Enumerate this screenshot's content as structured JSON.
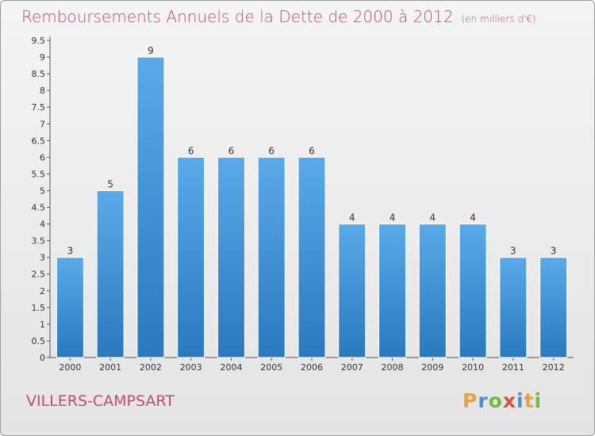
{
  "title": "Remboursements Annuels de la Dette de 2000 à 2012",
  "subtitle": "(en milliers d'€)",
  "commune": "VILLERS-CAMPSART",
  "logo": {
    "letters": [
      "P",
      "r",
      "o",
      "x",
      "i",
      "t",
      "i"
    ],
    "colors": [
      "#e8a33a",
      "#4a8fd6",
      "#6dbb3c",
      "#d9503f",
      "#4a8fd6",
      "#e8a33a",
      "#6dbb3c"
    ]
  },
  "colors": {
    "bar_light": "#5aaaea",
    "bar_dark": "#2a78be",
    "title": "#c24a6e"
  },
  "chart_data": {
    "type": "bar",
    "categories": [
      "2000",
      "2001",
      "2002",
      "2003",
      "2004",
      "2005",
      "2006",
      "2007",
      "2008",
      "2009",
      "2010",
      "2011",
      "2012"
    ],
    "values": [
      3,
      5,
      9,
      6,
      6,
      6,
      6,
      4,
      4,
      4,
      4,
      3,
      3
    ],
    "value_labels": [
      "3",
      "5",
      "9",
      "6",
      "6",
      "6",
      "6",
      "4",
      "4",
      "4",
      "4",
      "3",
      "3"
    ],
    "ylim": [
      0,
      9.5
    ],
    "yticks": [
      0,
      0.5,
      1,
      1.5,
      2,
      2.5,
      3,
      3.5,
      4,
      4.5,
      5,
      5.5,
      6,
      6.5,
      7,
      7.5,
      8,
      8.5,
      9,
      9.5
    ],
    "ytick_labels": [
      "0",
      "0.5",
      "1",
      "1.5",
      "2",
      "2.5",
      "3",
      "3.5",
      "4",
      "4.5",
      "5",
      "5.5",
      "6",
      "6.5",
      "7",
      "7.5",
      "8",
      "8.5",
      "9",
      "9.5"
    ],
    "grid": false,
    "legend": "none"
  }
}
